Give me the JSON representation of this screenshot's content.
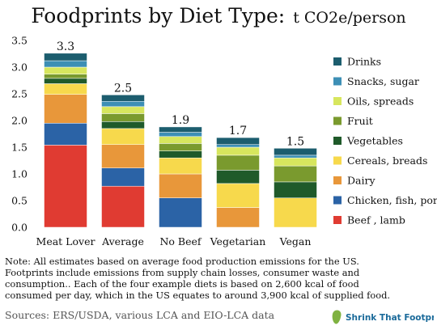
{
  "chart_data": {
    "type": "bar",
    "stacked": true,
    "title": "Foodprints by Diet Type:",
    "title_unit": "t CO2e/person",
    "xlabel": "",
    "ylabel": "",
    "ylim": [
      0,
      3.5
    ],
    "y_ticks": [
      "0.0",
      "0.5",
      "1.0",
      "1.5",
      "2.0",
      "2.5",
      "3.0",
      "3.5"
    ],
    "categories": [
      "Meat Lover",
      "Average",
      "No Beef",
      "Vegetarian",
      "Vegan"
    ],
    "totals": [
      "3.3",
      "2.5",
      "1.9",
      "1.7",
      "1.5"
    ],
    "grid": false,
    "legend_position": "right",
    "series": [
      {
        "name": "Beef , lamb",
        "color": "#e03b32",
        "values": [
          1.54,
          0.77,
          0,
          0,
          0
        ]
      },
      {
        "name": "Chicken, fish, pork",
        "color": "#2b63a6",
        "values": [
          0.41,
          0.34,
          0.55,
          0,
          0
        ]
      },
      {
        "name": "Dairy",
        "color": "#e8973a",
        "values": [
          0.54,
          0.44,
          0.45,
          0.37,
          0
        ]
      },
      {
        "name": "Cereals, breads",
        "color": "#f7d94c",
        "values": [
          0.2,
          0.3,
          0.3,
          0.45,
          0.55
        ]
      },
      {
        "name": "Vegetables",
        "color": "#1f5a2a",
        "values": [
          0.1,
          0.13,
          0.13,
          0.25,
          0.3
        ]
      },
      {
        "name": "Fruit",
        "color": "#7a9a2e",
        "values": [
          0.08,
          0.15,
          0.14,
          0.28,
          0.3
        ]
      },
      {
        "name": "Oils, spreads",
        "color": "#d7e65e",
        "values": [
          0.13,
          0.13,
          0.13,
          0.15,
          0.15
        ]
      },
      {
        "name": "Snacks, sugar",
        "color": "#3d8fb5",
        "values": [
          0.12,
          0.1,
          0.08,
          0.05,
          0.05
        ]
      },
      {
        "name": "Drinks",
        "color": "#1c5d6e",
        "values": [
          0.14,
          0.12,
          0.1,
          0.13,
          0.13
        ]
      }
    ]
  },
  "note_lines": [
    "Note: All estimates based on average food production emissions for the US.",
    "Footprints include emissions from supply chain losses, consumer waste and",
    "consumption..  Each of the four example diets is based on 2,600 kcal of food",
    "consumed per day, which in the US equates to around 3,900 kcal of supplied food."
  ],
  "source": "Sources:  ERS/USDA, various LCA and EIO-LCA data",
  "logo_text": "Shrink That Footprint",
  "logo_colors": {
    "green": "#7fb241",
    "blue": "#1a6a9a"
  }
}
